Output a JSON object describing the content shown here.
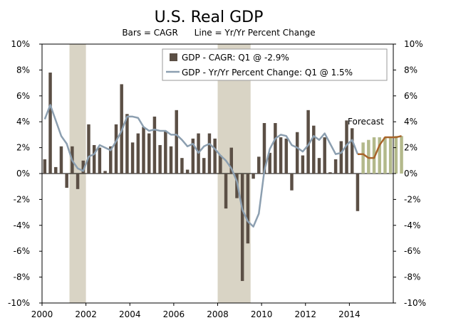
{
  "chart_data": {
    "type": "bar",
    "title": "U.S. Real GDP",
    "subtitle": "Bars = CAGR      Line = Yr/Yr Percent Change",
    "ylim": [
      -10,
      10
    ],
    "y_ticks": [
      "10%",
      "8%",
      "6%",
      "4%",
      "2%",
      "0%",
      "-2%",
      "-4%",
      "-6%",
      "-8%",
      "-10%"
    ],
    "y_ticks_right": [
      "10%",
      "8%",
      "6%",
      "4%",
      "2%",
      "0%",
      "-2%",
      "-4%",
      "-6%",
      "-8%",
      "-10%"
    ],
    "x_ticks": [
      "2000",
      "2002",
      "2004",
      "2006",
      "2008",
      "2010",
      "2012",
      "2014"
    ],
    "x_range": [
      2000.0,
      2016.0
    ],
    "recessions": [
      [
        2001.25,
        2002.0
      ],
      [
        2008.0,
        2009.5
      ]
    ],
    "legend": {
      "position": "top-right",
      "bars_label": "GDP - CAGR: Q1 @ -2.9%",
      "line_label": "GDP - Yr/Yr Percent Change: Q1 @ 1.5%"
    },
    "annotation": "Forecast",
    "colors": {
      "bars": "#5b4f45",
      "forecast_bars": "#b3b98b",
      "line": "#8c9fb0",
      "forecast_line": "#a8642a",
      "recession": "#d9d4c5"
    },
    "series": [
      {
        "name": "GDP - CAGR",
        "start": 2000.0,
        "step": 0.25,
        "values": [
          1.1,
          7.8,
          0.5,
          2.1,
          -1.1,
          2.1,
          -1.2,
          1.0,
          3.8,
          2.2,
          2.0,
          0.2,
          2.1,
          3.8,
          6.9,
          4.6,
          2.4,
          3.1,
          3.6,
          3.1,
          4.4,
          2.2,
          3.3,
          2.1,
          4.9,
          1.2,
          0.3,
          2.7,
          3.1,
          1.2,
          3.1,
          2.7,
          1.4,
          -2.7,
          2.0,
          -1.9,
          -8.3,
          -5.4,
          -0.4,
          1.3,
          3.9,
          1.6,
          3.9,
          2.8,
          2.7,
          -1.3,
          3.2,
          1.4,
          4.9,
          3.7,
          1.2,
          2.8,
          0.1,
          1.1,
          2.5,
          4.1,
          3.5,
          -2.9
        ],
        "forecast_values": [
          2.4,
          2.6,
          2.8,
          2.8,
          2.8,
          2.8,
          2.9,
          2.9
        ]
      },
      {
        "name": "GDP - Yr/Yr Percent Change",
        "start": 2000.0,
        "step": 0.25,
        "values": [
          4.2,
          5.3,
          4.1,
          2.9,
          2.3,
          1.0,
          0.4,
          0.2,
          1.3,
          1.5,
          2.2,
          2.0,
          1.8,
          2.5,
          3.3,
          4.4,
          4.4,
          4.3,
          3.6,
          3.3,
          3.4,
          3.3,
          3.3,
          3.0,
          3.0,
          2.6,
          2.1,
          2.3,
          1.6,
          2.1,
          2.3,
          1.9,
          1.4,
          1.0,
          0.4,
          -0.6,
          -2.8,
          -3.7,
          -4.1,
          -3.1,
          0.2,
          1.9,
          2.7,
          3.0,
          2.9,
          2.2,
          2.0,
          1.7,
          2.2,
          2.9,
          2.6,
          3.1,
          2.3,
          1.5,
          1.6,
          2.2,
          2.6,
          1.5
        ],
        "forecast_values": [
          1.5,
          1.2,
          1.2,
          2.2,
          2.8,
          2.8,
          2.8,
          2.9
        ]
      }
    ]
  }
}
